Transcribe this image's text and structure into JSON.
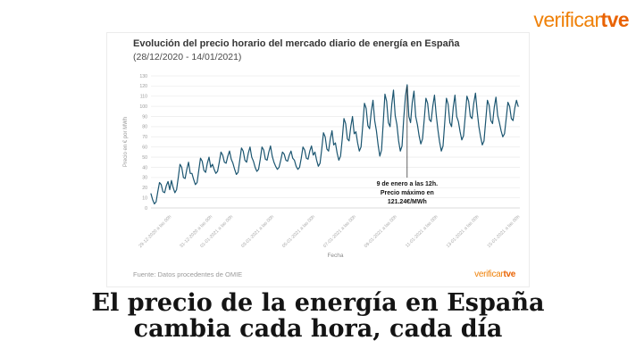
{
  "brand": {
    "logo_prefix": "verificar",
    "logo_suffix": "tve",
    "prefix_color": "#ef8109",
    "suffix_color": "#e96304"
  },
  "card": {
    "source": "Fuente: Datos procedentes de OMIE"
  },
  "headline": {
    "line1": "El precio de la energía en España",
    "line2": "cambia cada hora, cada día"
  },
  "chart_data": {
    "type": "line",
    "title": "Evolución del precio horario del mercado diario de energía en España",
    "subtitle": "(28/12/2020 - 14/01/2021)",
    "xlabel": "Fecha",
    "ylabel": "Precio en € por MWh",
    "ylim": [
      0,
      130
    ],
    "yticks": [
      0,
      10,
      20,
      30,
      40,
      50,
      60,
      70,
      80,
      90,
      100,
      110,
      120,
      130
    ],
    "grid": true,
    "line_color": "#1b5570",
    "x_start": "28-12-2020 a las 00h",
    "step_hours": 2,
    "x_domain_days": [
      0,
      18
    ],
    "xticks": [
      {
        "label": "29-12-2020 a las 00h",
        "day": 1
      },
      {
        "label": "31-12-2020 a las 00h",
        "day": 3
      },
      {
        "label": "01-01-2021 a las 00h",
        "day": 4
      },
      {
        "label": "03-01-2021 a las 00h",
        "day": 6
      },
      {
        "label": "05-01-2021 a las 00h",
        "day": 8
      },
      {
        "label": "07-01-2021 a las 00h",
        "day": 10
      },
      {
        "label": "09-01-2021 a las 00h",
        "day": 12
      },
      {
        "label": "11-01-2021 a las 00h",
        "day": 14
      },
      {
        "label": "13-01-2021 a las 00h",
        "day": 16
      },
      {
        "label": "15-01-2021 a las 00h",
        "day": 18
      }
    ],
    "annotation": {
      "index": 150,
      "value": 121.24,
      "lines": [
        "9 de enero a las 12h.",
        "Precio máximo en",
        "121.24€/MWh"
      ]
    },
    "values": [
      14,
      8,
      4,
      6,
      16,
      25,
      23,
      16,
      15,
      22,
      26,
      18,
      27,
      20,
      15,
      18,
      30,
      43,
      40,
      30,
      29,
      38,
      45,
      34,
      34,
      28,
      23,
      25,
      37,
      49,
      46,
      37,
      35,
      44,
      50,
      40,
      43,
      38,
      34,
      36,
      45,
      55,
      52,
      45,
      44,
      51,
      56,
      48,
      44,
      38,
      33,
      35,
      47,
      59,
      56,
      47,
      45,
      54,
      60,
      50,
      46,
      40,
      36,
      38,
      48,
      60,
      57,
      48,
      47,
      55,
      61,
      51,
      45,
      41,
      38,
      40,
      47,
      55,
      53,
      47,
      46,
      52,
      56,
      49,
      47,
      41,
      38,
      40,
      49,
      60,
      57,
      49,
      48,
      56,
      61,
      52,
      55,
      47,
      41,
      44,
      58,
      74,
      70,
      58,
      56,
      68,
      76,
      62,
      64,
      54,
      47,
      51,
      68,
      88,
      83,
      68,
      66,
      80,
      90,
      73,
      75,
      64,
      56,
      60,
      81,
      103,
      98,
      81,
      78,
      95,
      106,
      86,
      76,
      62,
      51,
      57,
      84,
      112,
      105,
      84,
      80,
      102,
      116,
      91,
      82,
      66,
      56,
      61,
      88,
      110,
      121.24,
      90,
      84,
      104,
      115,
      90,
      82,
      71,
      63,
      68,
      87,
      108,
      103,
      87,
      85,
      100,
      111,
      92,
      77,
      65,
      56,
      61,
      84,
      108,
      102,
      84,
      80,
      99,
      111,
      90,
      85,
      75,
      67,
      71,
      90,
      110,
      105,
      90,
      88,
      103,
      113,
      95,
      80,
      70,
      62,
      66,
      86,
      106,
      101,
      86,
      83,
      99,
      109,
      91,
      84,
      76,
      70,
      73,
      88,
      104,
      100,
      88,
      86,
      98,
      106,
      100
    ]
  }
}
